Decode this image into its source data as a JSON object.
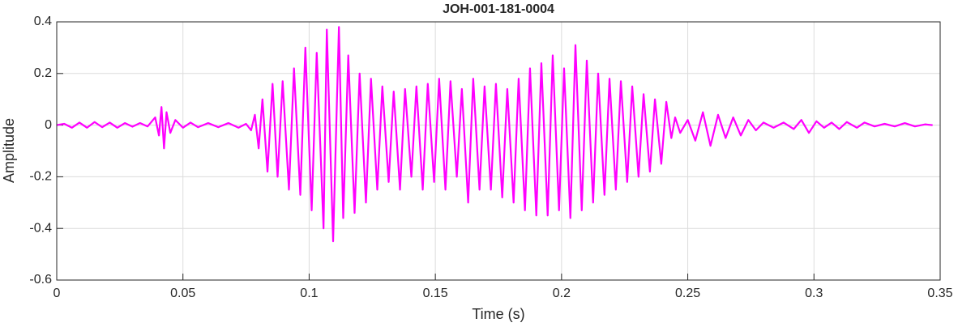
{
  "chart_data": {
    "type": "line",
    "title": "JOH-001-181-0004",
    "xlabel": "Time (s)",
    "ylabel": "Amplitude",
    "color": "#ff00ff",
    "grid": true,
    "xlim": [
      0,
      0.35
    ],
    "ylim": [
      -0.6,
      0.4
    ],
    "xticks": [
      0,
      0.05,
      0.1,
      0.15,
      0.2,
      0.25,
      0.3,
      0.35
    ],
    "yticks": [
      -0.6,
      -0.4,
      -0.2,
      0,
      0.2,
      0.4
    ],
    "x": [
      0,
      0.003,
      0.006,
      0.009,
      0.012,
      0.015,
      0.018,
      0.021,
      0.024,
      0.027,
      0.03,
      0.033,
      0.036,
      0.039,
      0.0405,
      0.0415,
      0.0425,
      0.0435,
      0.045,
      0.047,
      0.05,
      0.053,
      0.056,
      0.06,
      0.064,
      0.068,
      0.072,
      0.075,
      0.077,
      0.0785,
      0.08,
      0.0815,
      0.0835,
      0.0855,
      0.0875,
      0.0895,
      0.092,
      0.094,
      0.0965,
      0.0985,
      0.101,
      0.103,
      0.1057,
      0.107,
      0.1095,
      0.1118,
      0.1135,
      0.1155,
      0.118,
      0.12,
      0.1225,
      0.1245,
      0.127,
      0.129,
      0.1315,
      0.1335,
      0.136,
      0.138,
      0.1405,
      0.1425,
      0.145,
      0.147,
      0.1495,
      0.1515,
      0.154,
      0.156,
      0.1585,
      0.1605,
      0.163,
      0.165,
      0.1675,
      0.1695,
      0.172,
      0.174,
      0.1765,
      0.1785,
      0.181,
      0.183,
      0.1855,
      0.1875,
      0.19,
      0.192,
      0.1945,
      0.1965,
      0.199,
      0.201,
      0.2035,
      0.2055,
      0.208,
      0.21,
      0.2125,
      0.2145,
      0.217,
      0.219,
      0.2215,
      0.2235,
      0.226,
      0.228,
      0.2305,
      0.2325,
      0.235,
      0.237,
      0.2395,
      0.2415,
      0.2435,
      0.245,
      0.247,
      0.25,
      0.253,
      0.256,
      0.259,
      0.262,
      0.265,
      0.268,
      0.271,
      0.274,
      0.277,
      0.28,
      0.284,
      0.288,
      0.292,
      0.295,
      0.298,
      0.301,
      0.304,
      0.307,
      0.31,
      0.313,
      0.317,
      0.32,
      0.324,
      0.328,
      0.332,
      0.336,
      0.34,
      0.344,
      0.347
    ],
    "values": [
      0,
      0.005,
      -0.01,
      0.01,
      -0.01,
      0.012,
      -0.008,
      0.01,
      -0.01,
      0.008,
      -0.006,
      0.008,
      -0.005,
      0.03,
      -0.04,
      0.07,
      -0.09,
      0.05,
      -0.03,
      0.02,
      -0.01,
      0.01,
      -0.008,
      0.008,
      -0.008,
      0.008,
      -0.01,
      0.005,
      -0.02,
      0.04,
      -0.09,
      0.1,
      -0.18,
      0.16,
      -0.2,
      0.17,
      -0.25,
      0.22,
      -0.27,
      0.3,
      -0.33,
      0.28,
      -0.4,
      0.37,
      -0.45,
      0.38,
      -0.36,
      0.27,
      -0.34,
      0.2,
      -0.3,
      0.18,
      -0.25,
      0.15,
      -0.22,
      0.13,
      -0.25,
      0.14,
      -0.2,
      0.15,
      -0.25,
      0.16,
      -0.22,
      0.18,
      -0.25,
      0.17,
      -0.2,
      0.14,
      -0.3,
      0.18,
      -0.25,
      0.15,
      -0.25,
      0.16,
      -0.28,
      0.14,
      -0.3,
      0.18,
      -0.33,
      0.22,
      -0.35,
      0.24,
      -0.35,
      0.27,
      -0.33,
      0.22,
      -0.36,
      0.31,
      -0.33,
      0.25,
      -0.3,
      0.2,
      -0.27,
      0.18,
      -0.25,
      0.17,
      -0.22,
      0.15,
      -0.2,
      0.12,
      -0.18,
      0.1,
      -0.15,
      0.09,
      -0.05,
      0.03,
      -0.03,
      0.02,
      -0.06,
      0.05,
      -0.08,
      0.04,
      -0.05,
      0.03,
      -0.04,
      0.02,
      -0.02,
      0.01,
      -0.01,
      0.01,
      -0.015,
      0.02,
      -0.03,
      0.015,
      -0.01,
      0.01,
      -0.015,
      0.012,
      -0.01,
      0.01,
      -0.005,
      0.005,
      -0.005,
      0.008,
      -0.005,
      0.003,
      0
    ]
  }
}
